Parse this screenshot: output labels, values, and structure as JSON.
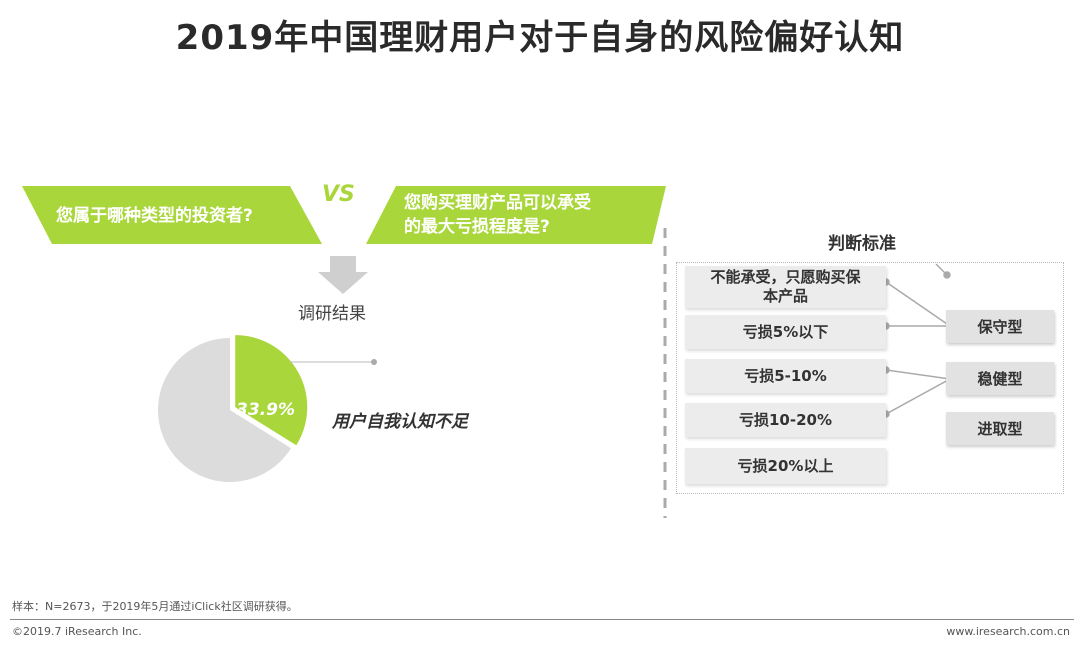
{
  "title": "2019年中国理财用户对于自身的风险偏好认知",
  "question_left": "您属于哪种类型的投资者?",
  "vs_label": "VS",
  "question_right_line1": "您购买理财产品可以承受",
  "question_right_line2": "的最大亏损程度是?",
  "result_label": "调研结果",
  "chart_data": {
    "type": "pie",
    "slices": [
      {
        "label": "用户自我认知不足",
        "value": 33.9,
        "display": "33.9%",
        "color": "#a9d63a"
      },
      {
        "label": "",
        "value": 66.1,
        "color": "#dcdcdc"
      }
    ]
  },
  "pie_caption": "用户自我认知不足",
  "criteria_title": "判断标准",
  "criteria": [
    {
      "line1": "不能承受，只愿购买保",
      "line2": "本产品"
    },
    {
      "line1": "亏损5%以下",
      "line2": ""
    },
    {
      "line1": "亏损5-10%",
      "line2": ""
    },
    {
      "line1": "亏损10-20%",
      "line2": ""
    },
    {
      "line1": "亏损20%以上",
      "line2": ""
    }
  ],
  "categories": [
    "保守型",
    "稳健型",
    "进取型"
  ],
  "colors": {
    "accent": "#a9d63a",
    "box": "#ececec",
    "pie_rest": "#dcdcdc"
  },
  "footnote": "样本：N=2673，于2019年5月通过iClick社区调研获得。",
  "copyright": "©2019.7 iResearch Inc.",
  "website": "www.iresearch.com.cn"
}
